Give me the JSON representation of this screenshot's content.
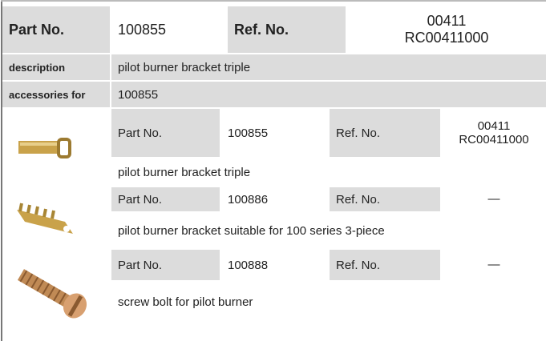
{
  "header": {
    "part_no_label": "Part No.",
    "part_no": "100855",
    "ref_no_label": "Ref. No.",
    "ref_no": [
      "00411",
      "RC00411000"
    ]
  },
  "description_label": "description",
  "description": "pilot burner bracket  triple",
  "accessories_label": "accessories for",
  "accessories_value": "100855",
  "items": [
    {
      "part_no_label": "Part No.",
      "part_no": "100855",
      "ref_no_label": "Ref. No.",
      "ref_no": [
        "00411",
        "RC00411000"
      ],
      "description": "pilot burner bracket  triple"
    },
    {
      "part_no_label": "Part No.",
      "part_no": "100886",
      "ref_no_label": "Ref. No.",
      "ref_no": [
        "—"
      ],
      "description": "pilot burner bracket  suitable for 100 series 3-piece"
    },
    {
      "part_no_label": "Part No.",
      "part_no": "100888",
      "ref_no_label": "Ref. No.",
      "ref_no": [
        "—"
      ],
      "description": "screw bolt  for pilot burner"
    }
  ]
}
